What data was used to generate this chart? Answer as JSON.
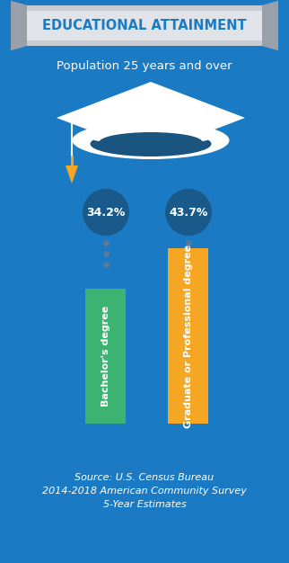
{
  "title": "EDUCATIONAL ATTAINMENT",
  "subtitle": "Population 25 years and over",
  "categories": [
    "Bachelor's degree",
    "Graduate or Professional degree"
  ],
  "values": [
    34.2,
    43.7
  ],
  "labels": [
    "34.2%",
    "43.7%"
  ],
  "bar_colors": [
    "#3cb371",
    "#f5a623"
  ],
  "bg_color": "#1a7bc4",
  "bubble_color": "#1a5a8a",
  "title_bg_light": "#e0e3e8",
  "title_bg_mid": "#c8ccd2",
  "title_shadow": "#9aa0aa",
  "title_color": "#1a7bc4",
  "source_text": "Source: U.S. Census Bureau\n2014-2018 American Community Survey\n5-Year Estimates",
  "hat_white": "#ffffff",
  "hat_dark": "#1a5580",
  "tassel_color": "#f5a623",
  "dot_color": "#5a7a9a",
  "bar_label_color": "#ffffff"
}
